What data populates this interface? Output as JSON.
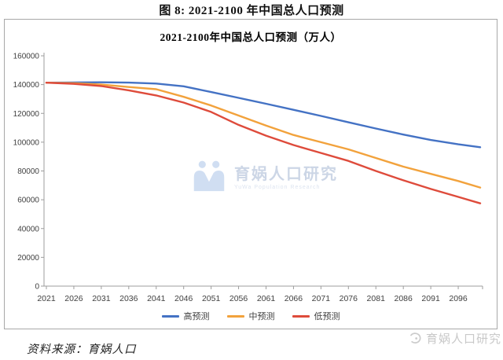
{
  "figure_title": "图 8: 2021-2100 年中国总人口预测",
  "source_note": "资料来源：育娲人口",
  "footer_brand": "育娲人口研究",
  "watermark": {
    "text": "育娲人口研究",
    "subtext": "YuWa Population Research"
  },
  "colors": {
    "high": "#4472C4",
    "mid": "#F2A23C",
    "low": "#DE4B3B",
    "axis": "#9d9d9d",
    "tick_label": "#404040"
  },
  "chart_data": {
    "type": "line",
    "title": "2021-2100年中国总人口预测（万人）",
    "xlabel": "",
    "ylabel": "",
    "unit": "万人",
    "grid": false,
    "legend_position": "bottom",
    "xlim": [
      2021,
      2100
    ],
    "ylim": [
      0,
      160000
    ],
    "yticks": [
      0,
      20000,
      40000,
      60000,
      80000,
      100000,
      120000,
      140000,
      160000
    ],
    "xticks": [
      2021,
      2026,
      2031,
      2036,
      2041,
      2046,
      2051,
      2056,
      2061,
      2066,
      2071,
      2076,
      2081,
      2086,
      2091,
      2096
    ],
    "x": [
      2021,
      2026,
      2031,
      2036,
      2041,
      2046,
      2051,
      2056,
      2061,
      2066,
      2071,
      2076,
      2081,
      2086,
      2091,
      2096,
      2100
    ],
    "series": [
      {
        "name": "高预测",
        "color": "#4472C4",
        "values": [
          141300,
          141500,
          141600,
          141400,
          140700,
          138800,
          134800,
          130800,
          126700,
          122500,
          118200,
          113800,
          109500,
          105300,
          101500,
          98500,
          96500
        ]
      },
      {
        "name": "中预测",
        "color": "#F2A23C",
        "values": [
          141300,
          141000,
          140000,
          138300,
          136800,
          131500,
          125500,
          118500,
          111500,
          105000,
          100000,
          95000,
          89000,
          83000,
          78000,
          73000,
          68500
        ]
      },
      {
        "name": "低预测",
        "color": "#DE4B3B",
        "values": [
          141300,
          140500,
          139000,
          136000,
          132500,
          127500,
          121000,
          112000,
          104500,
          98000,
          92500,
          87000,
          80000,
          73500,
          67500,
          62000,
          57500
        ]
      }
    ]
  }
}
